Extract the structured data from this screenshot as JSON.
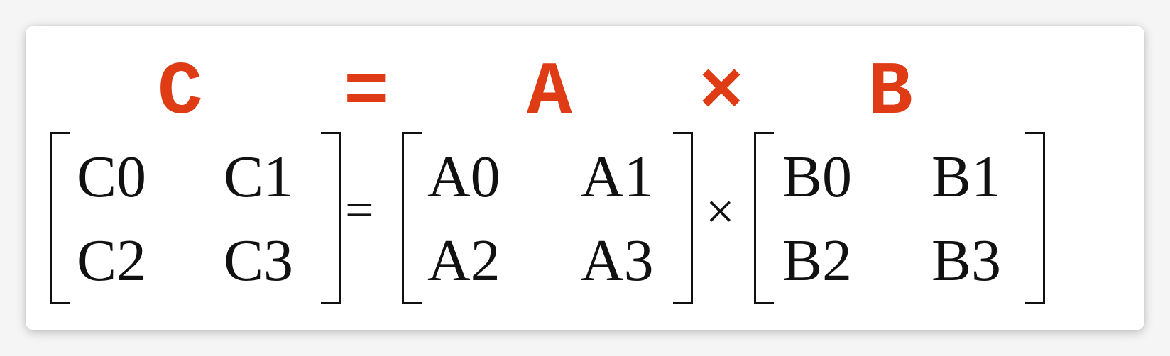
{
  "heading": {
    "c": "C",
    "equals": "=",
    "a": "A",
    "times": "×",
    "b": "B"
  },
  "colors": {
    "heading": "#df3b14",
    "text": "#111111",
    "background": "#ffffff"
  },
  "matrices": {
    "c": [
      "C0",
      "C1",
      "C2",
      "C3"
    ],
    "a": [
      "A0",
      "A1",
      "A2",
      "A3"
    ],
    "b": [
      "B0",
      "B1",
      "B2",
      "B3"
    ]
  },
  "operators": {
    "equals": "=",
    "times": "×"
  }
}
